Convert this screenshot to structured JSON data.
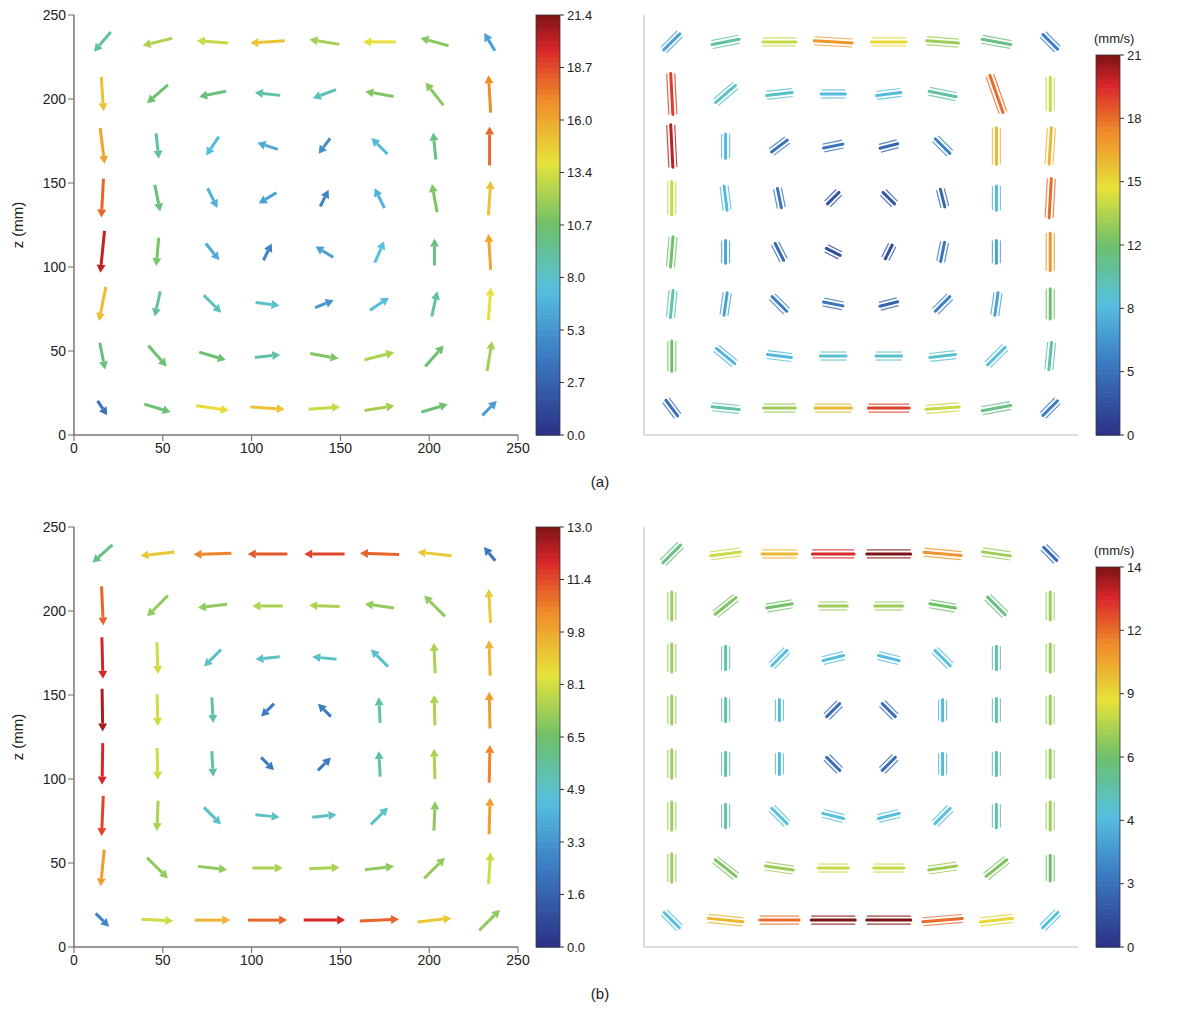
{
  "panel_labels": [
    "(a)",
    "(b)"
  ],
  "chart_data": [
    {
      "type": "quiver",
      "marker": "arrow",
      "ylabel": "z (mm)",
      "xlim": [
        0,
        250
      ],
      "ylim": [
        0,
        250
      ],
      "xticks": [
        0,
        50,
        100,
        150,
        200,
        250
      ],
      "yticks": [
        0,
        50,
        100,
        150,
        200,
        250
      ],
      "x": [
        16,
        47,
        78,
        109,
        141,
        172,
        203,
        234
      ],
      "z": [
        234,
        203,
        172,
        141,
        109,
        78,
        47,
        16
      ],
      "u": [
        [
          -6,
          -12,
          -13,
          -15,
          -12,
          -14,
          -11,
          -3
        ],
        [
          1,
          -8,
          -10,
          -9,
          -8,
          -11,
          -7,
          -1
        ],
        [
          2,
          1,
          -4,
          -6,
          -3,
          -5,
          -1,
          0
        ],
        [
          -1,
          2,
          3,
          -5,
          2,
          -3,
          -2,
          1
        ],
        [
          -2,
          -1,
          4,
          2,
          -5,
          3,
          0,
          -1
        ],
        [
          -3,
          -2,
          6,
          8,
          5,
          6,
          2,
          1
        ],
        [
          2,
          7,
          10,
          9,
          11,
          12,
          7,
          2
        ],
        [
          2,
          10,
          14,
          15,
          13,
          12,
          10,
          4
        ]
      ],
      "w": [
        [
          -7,
          -3,
          1,
          -1,
          2,
          0,
          3,
          5
        ],
        [
          -15,
          -7,
          -2,
          1,
          -3,
          2,
          9,
          17
        ],
        [
          -16,
          -9,
          -6,
          2,
          -4,
          5,
          10,
          18
        ],
        [
          -18,
          -10,
          -6,
          -3,
          4,
          6,
          11,
          15
        ],
        [
          -20,
          -11,
          -5,
          4,
          3,
          7,
          10,
          16
        ],
        [
          -15,
          -9,
          -6,
          -1,
          2,
          4,
          9,
          14
        ],
        [
          -10,
          -8,
          -3,
          1,
          -2,
          3,
          8,
          12
        ],
        [
          -3,
          -3,
          -2,
          -1,
          1,
          2,
          3,
          4
        ]
      ],
      "colorbar": {
        "range": [
          0,
          21.4
        ],
        "ticks": [
          {
            "value": 0,
            "label": "0.0"
          },
          2.7,
          5.3,
          {
            "value": 8,
            "label": "8.0"
          },
          10.7,
          13.4,
          {
            "value": 16,
            "label": "16.0"
          },
          18.7,
          21.4
        ]
      }
    },
    {
      "type": "quiver",
      "marker": "streak",
      "tick_labels": false,
      "xlim": [
        0,
        250
      ],
      "ylim": [
        0,
        250
      ],
      "x": [
        16,
        47,
        78,
        109,
        141,
        172,
        203,
        234
      ],
      "z": [
        234,
        203,
        172,
        141,
        109,
        78,
        47,
        16
      ],
      "u": [
        [
          -5,
          -10,
          -14,
          -17,
          -15,
          -13,
          -11,
          -4
        ],
        [
          1,
          -7,
          -9,
          -8,
          -8,
          -10,
          -6,
          0
        ],
        [
          1,
          0,
          -4,
          -5,
          -4,
          -4,
          0,
          1
        ],
        [
          0,
          1,
          1,
          -2,
          -2,
          -1,
          0,
          1
        ],
        [
          -1,
          0,
          2,
          2,
          1,
          1,
          0,
          0
        ],
        [
          -1,
          -1,
          4,
          5,
          4,
          4,
          1,
          0
        ],
        [
          0,
          6,
          8,
          9,
          9,
          9,
          6,
          1
        ],
        [
          3,
          10,
          13,
          16,
          19,
          14,
          11,
          4
        ]
      ],
      "w": [
        [
          -5,
          -2,
          0,
          1,
          0,
          1,
          2,
          4
        ],
        [
          -19,
          -6,
          -1,
          0,
          -1,
          2,
          17,
          14
        ],
        [
          -20,
          -8,
          -3,
          -1,
          -1,
          4,
          16,
          16
        ],
        [
          -14,
          -8,
          -5,
          -2,
          2,
          4,
          8,
          18
        ],
        [
          -12,
          -7,
          -4,
          -1,
          2,
          5,
          7,
          17
        ],
        [
          -10,
          -7,
          -4,
          -1,
          1,
          4,
          7,
          12
        ],
        [
          -12,
          -5,
          -1,
          0,
          0,
          1,
          6,
          10
        ],
        [
          -4,
          -1,
          0,
          0,
          0,
          1,
          2,
          4
        ]
      ],
      "colorbar": {
        "label": "(mm/s)",
        "range": [
          0,
          21
        ],
        "ticks": [
          0,
          5,
          8,
          12,
          15,
          18,
          21
        ]
      }
    },
    {
      "type": "quiver",
      "marker": "arrow",
      "ylabel": "z (mm)",
      "xlim": [
        0,
        250
      ],
      "ylim": [
        0,
        250
      ],
      "xticks": [
        0,
        50,
        100,
        150,
        200,
        250
      ],
      "yticks": [
        0,
        50,
        100,
        150,
        200,
        250
      ],
      "x": [
        16,
        47,
        78,
        109,
        141,
        172,
        203,
        234
      ],
      "z": [
        234,
        203,
        172,
        141,
        109,
        78,
        47,
        16
      ],
      "u": [
        [
          -4.5,
          -9.0,
          -10.5,
          -11.2,
          -11.5,
          -11.0,
          -9.0,
          -1.5
        ],
        [
          0.5,
          -5.0,
          -7.0,
          -7.5,
          -7.5,
          -7.0,
          -5.0,
          -0.5
        ],
        [
          0.3,
          0.3,
          -3.5,
          -5.0,
          -5.0,
          -3.5,
          -0.3,
          -0.3
        ],
        [
          0.2,
          0.2,
          0.3,
          -1.8,
          -1.8,
          -0.3,
          -0.2,
          -0.2
        ],
        [
          -0.2,
          0.2,
          0.3,
          1.8,
          1.8,
          -0.3,
          -0.2,
          0.2
        ],
        [
          -0.5,
          -0.3,
          3.5,
          5.0,
          5.0,
          3.5,
          0.3,
          0.3
        ],
        [
          -1.0,
          5.0,
          7.0,
          7.5,
          7.5,
          7.0,
          5.0,
          0.5
        ],
        [
          2.0,
          8.0,
          9.5,
          11.0,
          12.0,
          11.0,
          9.0,
          5.0
        ]
      ],
      "w": [
        [
          -4.0,
          -1.0,
          -0.3,
          0.0,
          0.0,
          0.3,
          1.0,
          1.8
        ],
        [
          -11.0,
          -5.0,
          -0.8,
          0.0,
          0.3,
          1.0,
          5.0,
          9.0
        ],
        [
          -12.0,
          -8.0,
          -3.5,
          -0.5,
          0.5,
          3.5,
          7.5,
          9.5
        ],
        [
          -12.5,
          -8.0,
          -5.5,
          -1.8,
          1.8,
          5.5,
          7.5,
          10.0
        ],
        [
          -12.0,
          -8.0,
          -5.5,
          -1.8,
          1.8,
          5.5,
          7.5,
          10.5
        ],
        [
          -11.5,
          -7.5,
          -3.5,
          -0.5,
          0.5,
          3.5,
          7.0,
          10.0
        ],
        [
          -10.0,
          -5.0,
          -0.8,
          0.0,
          0.3,
          0.8,
          5.0,
          8.0
        ],
        [
          -2.0,
          -0.5,
          0.0,
          0.0,
          0.0,
          0.5,
          1.0,
          5.0
        ]
      ],
      "colorbar": {
        "range": [
          0,
          13
        ],
        "ticks": [
          {
            "value": 0,
            "label": "0.0"
          },
          1.6,
          3.3,
          4.9,
          6.5,
          8.1,
          9.8,
          11.4,
          {
            "value": 13,
            "label": "13.0"
          }
        ]
      }
    },
    {
      "type": "quiver",
      "marker": "streak",
      "tick_labels": false,
      "xlim": [
        0,
        250
      ],
      "ylim": [
        0,
        250
      ],
      "x": [
        16,
        47,
        78,
        109,
        141,
        172,
        203,
        234
      ],
      "z": [
        234,
        203,
        172,
        141,
        109,
        78,
        47,
        16
      ],
      "u": [
        [
          -4,
          -8,
          -10,
          -13,
          -14,
          -11,
          -7,
          -2
        ],
        [
          0,
          -5,
          -6,
          -7,
          -7,
          -6,
          -4,
          0
        ],
        [
          0,
          0,
          -3,
          -4,
          -4,
          -3,
          0,
          0
        ],
        [
          0,
          0,
          0,
          -2,
          -2,
          0,
          0,
          0
        ],
        [
          0,
          0,
          0,
          2,
          2,
          0,
          0,
          0
        ],
        [
          0,
          0,
          3,
          4,
          4,
          3,
          0,
          0
        ],
        [
          0,
          5,
          7,
          8,
          8,
          7,
          5,
          0
        ],
        [
          3,
          10,
          12,
          14,
          14,
          12,
          9,
          3
        ]
      ],
      "w": [
        [
          -4,
          -1,
          0,
          0,
          0,
          1,
          1,
          2
        ],
        [
          -7,
          -4,
          -1,
          0,
          0,
          1,
          4,
          7
        ],
        [
          -7,
          -5,
          -3,
          -1,
          1,
          3,
          5,
          7
        ],
        [
          -7,
          -5,
          -4,
          -2,
          2,
          4,
          5,
          7
        ],
        [
          -7,
          -5,
          -4,
          -2,
          2,
          4,
          5,
          7
        ],
        [
          -7,
          -5,
          -3,
          -1,
          1,
          3,
          5,
          7
        ],
        [
          -7,
          -4,
          -1,
          0,
          0,
          1,
          4,
          6
        ],
        [
          -3,
          -1,
          0,
          0,
          0,
          1,
          1,
          3
        ]
      ],
      "colorbar": {
        "label": "(mm/s)",
        "range": [
          0,
          14
        ],
        "ticks": [
          0,
          3,
          4,
          6,
          9,
          12,
          14
        ]
      }
    }
  ]
}
